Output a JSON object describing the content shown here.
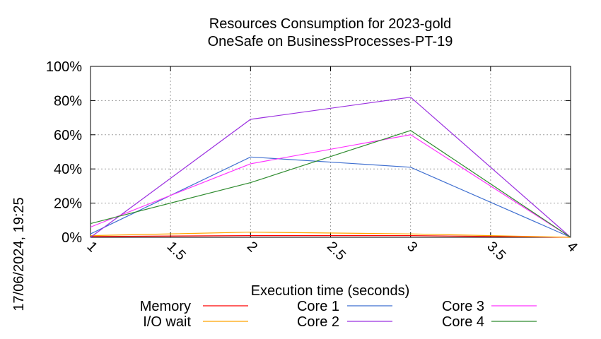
{
  "chart_data": {
    "type": "line",
    "title": "Resources Consumption for 2023-gold",
    "subtitle": "OneSafe on BusinessProcesses-PT-19",
    "xlabel": "Execution time (seconds)",
    "ylabel": "",
    "side_label": "17/06/2024, 19:25",
    "xlim": [
      1,
      4
    ],
    "ylim": [
      0,
      100
    ],
    "x_ticks": [
      "1",
      "1.5",
      "2",
      "2.5",
      "3",
      "3.5",
      "4"
    ],
    "y_ticks": [
      "0%",
      "20%",
      "40%",
      "60%",
      "80%",
      "100%"
    ],
    "grid": true,
    "legend_position": "bottom",
    "x": [
      1,
      2,
      3,
      4
    ],
    "series": [
      {
        "name": "Memory",
        "values": [
          0.5,
          1,
          1,
          0
        ],
        "color": "#ff0000"
      },
      {
        "name": "I/O wait",
        "values": [
          1,
          3,
          2,
          0
        ],
        "color": "#ffa500"
      },
      {
        "name": "Core 1",
        "values": [
          2,
          47,
          41,
          0
        ],
        "color": "#3f6fd0"
      },
      {
        "name": "Core 2",
        "values": [
          0,
          69,
          82,
          0
        ],
        "color": "#9b30e0"
      },
      {
        "name": "Core 3",
        "values": [
          6,
          43,
          60,
          0
        ],
        "color": "#ff33ff"
      },
      {
        "name": "Core 4",
        "values": [
          8,
          32,
          62.5,
          0
        ],
        "color": "#2e8b2e"
      }
    ]
  }
}
